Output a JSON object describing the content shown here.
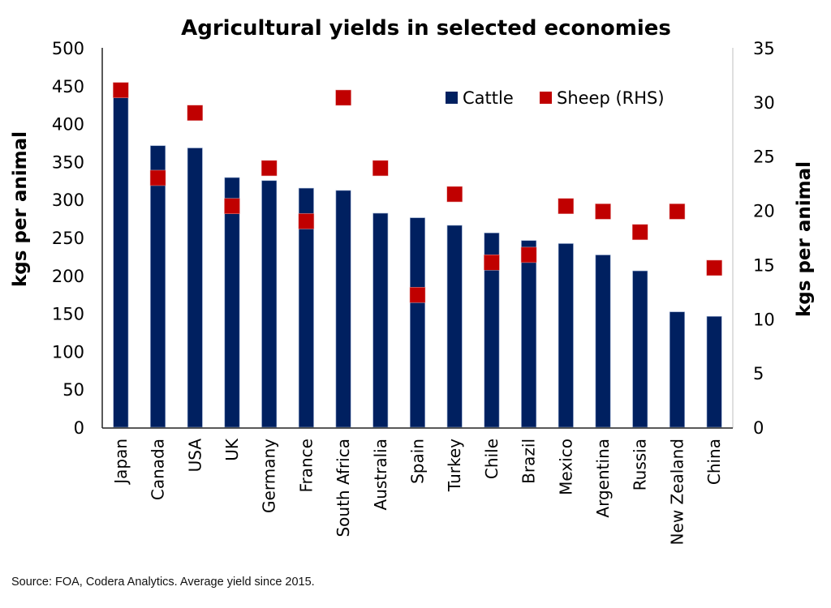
{
  "chart_data": {
    "type": "bar",
    "title": "Agricultural yields in selected economies",
    "ylabel": "kgs per animal",
    "ylabel_right": "kgs per animal",
    "xlabel": "",
    "ylim": [
      0,
      500
    ],
    "ylim_right": [
      0,
      35
    ],
    "yticks": [
      "0",
      "50",
      "100",
      "150",
      "200",
      "250",
      "300",
      "350",
      "400",
      "450",
      "500"
    ],
    "yticks_right": [
      "0",
      "5",
      "10",
      "15",
      "20",
      "25",
      "30",
      "35"
    ],
    "grid": false,
    "legend_position": "top-right",
    "categories": [
      "Japan",
      "Canada",
      "USA",
      "UK",
      "Germany",
      "France",
      "South Africa",
      "Australia",
      "Spain",
      "Turkey",
      "Chile",
      "Brazil",
      "Mexico",
      "Argentina",
      "Russia",
      "New Zealand",
      "China"
    ],
    "series": [
      {
        "name": "Cattle",
        "axis": "left",
        "kind": "bar",
        "color": "#002060",
        "values": [
          435,
          371,
          368,
          329,
          325,
          315,
          312,
          282,
          276,
          266,
          256,
          246,
          242,
          227,
          206,
          152,
          146
        ]
      },
      {
        "name": "Sheep (RHS)",
        "axis": "right",
        "kind": "marker",
        "color": "#C00000",
        "values": [
          31.1,
          23.0,
          29.0,
          20.4,
          23.9,
          19.0,
          30.4,
          23.9,
          12.2,
          21.5,
          15.2,
          15.9,
          20.4,
          19.9,
          18.0,
          19.9,
          14.7
        ]
      }
    ],
    "source": "Source: FOA, Codera Analytics. Average yield since 2015."
  }
}
